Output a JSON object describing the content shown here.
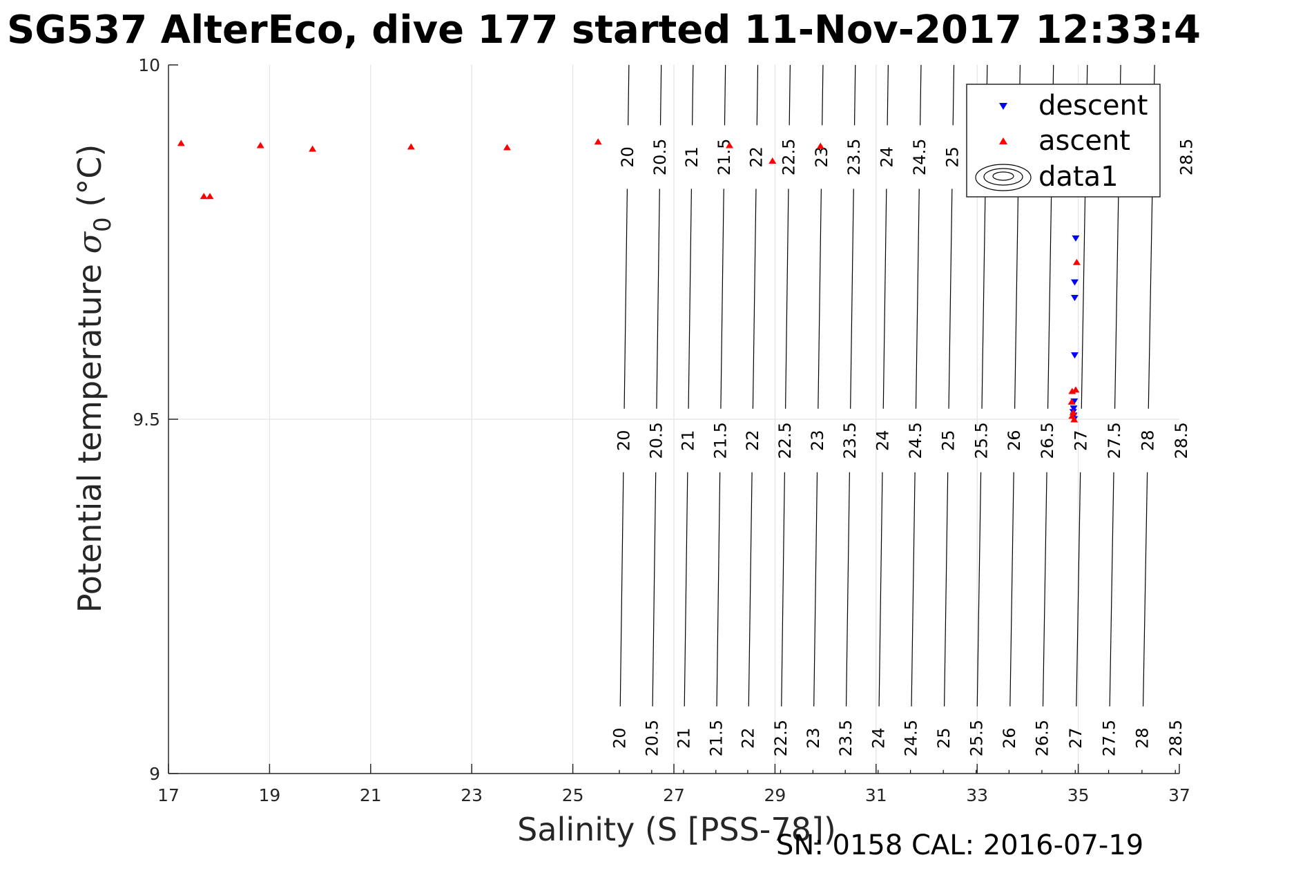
{
  "chart_data": {
    "type": "scatter",
    "title": "SG537 AlterEco, dive 177 started 11-Nov-2017 12:33:4",
    "xlabel": "Salinity (S [PSS-78])",
    "ylabel_main": "Potential temperature ",
    "ylabel_sigma": "σ",
    "ylabel_sub": "0",
    "ylabel_unit": " (°C)",
    "xlim": [
      17,
      37
    ],
    "ylim": [
      9,
      10
    ],
    "xticks": [
      "17",
      "19",
      "21",
      "23",
      "25",
      "27",
      "29",
      "31",
      "33",
      "35",
      "37"
    ],
    "yticks": [
      "9",
      "9.5",
      "10"
    ],
    "grid": true,
    "legend_position": "top-right",
    "legend": [
      {
        "label": "descent",
        "marker": "triangle-down",
        "color": "#0000ff"
      },
      {
        "label": "ascent",
        "marker": "triangle-up",
        "color": "#ff0000"
      },
      {
        "label": "data1",
        "marker": "contour",
        "color": "#000000"
      }
    ],
    "series": [
      {
        "name": "descent",
        "marker": "triangle-down",
        "color": "#0000ff",
        "points": [
          [
            34.95,
            9.755
          ],
          [
            34.93,
            9.693
          ],
          [
            34.93,
            9.671
          ],
          [
            34.93,
            9.59
          ],
          [
            34.92,
            9.525
          ],
          [
            34.91,
            9.515
          ],
          [
            34.9,
            9.51
          ],
          [
            34.91,
            9.505
          ],
          [
            34.92,
            9.5
          ]
        ]
      },
      {
        "name": "ascent",
        "marker": "triangle-up",
        "color": "#ff0000",
        "points": [
          [
            17.25,
            9.89
          ],
          [
            17.7,
            9.815
          ],
          [
            17.82,
            9.815
          ],
          [
            18.82,
            9.887
          ],
          [
            19.85,
            9.882
          ],
          [
            21.8,
            9.885
          ],
          [
            23.7,
            9.884
          ],
          [
            25.5,
            9.892
          ],
          [
            28.1,
            9.887
          ],
          [
            28.95,
            9.865
          ],
          [
            29.9,
            9.886
          ],
          [
            34.97,
            9.722
          ],
          [
            34.88,
            9.54
          ],
          [
            34.95,
            9.542
          ],
          [
            34.87,
            9.525
          ],
          [
            34.9,
            9.51
          ],
          [
            34.88,
            9.505
          ],
          [
            34.92,
            9.5
          ]
        ]
      }
    ],
    "contours": {
      "label": "data1",
      "levels": [
        "20",
        "20.5",
        "21",
        "21.5",
        "22",
        "22.5",
        "23",
        "23.5",
        "24",
        "24.5",
        "25",
        "25.5",
        "26",
        "26.5",
        "27",
        "27.5",
        "28",
        "28.5"
      ],
      "s_at_t10": [
        26.11,
        26.75,
        27.38,
        28.02,
        28.66,
        29.3,
        29.95,
        30.59,
        31.24,
        31.89,
        32.54,
        33.2,
        33.85,
        34.51,
        35.18,
        35.84,
        36.51,
        37.18
      ],
      "s_at_t9": [
        25.92,
        26.56,
        27.19,
        27.83,
        28.46,
        29.11,
        29.75,
        30.39,
        31.04,
        31.68,
        32.33,
        32.98,
        33.63,
        34.28,
        34.94,
        35.6,
        36.26,
        36.92
      ],
      "label_rows_t": [
        9.87,
        9.47,
        9.05
      ],
      "top_row_levels": [
        "20",
        "20.5",
        "21",
        "21.5",
        "22",
        "22.5",
        "23",
        "23.5",
        "24",
        "24.5",
        "25",
        "28.5"
      ]
    },
    "footer": "SN: 0158  CAL: 2016-07-19"
  }
}
